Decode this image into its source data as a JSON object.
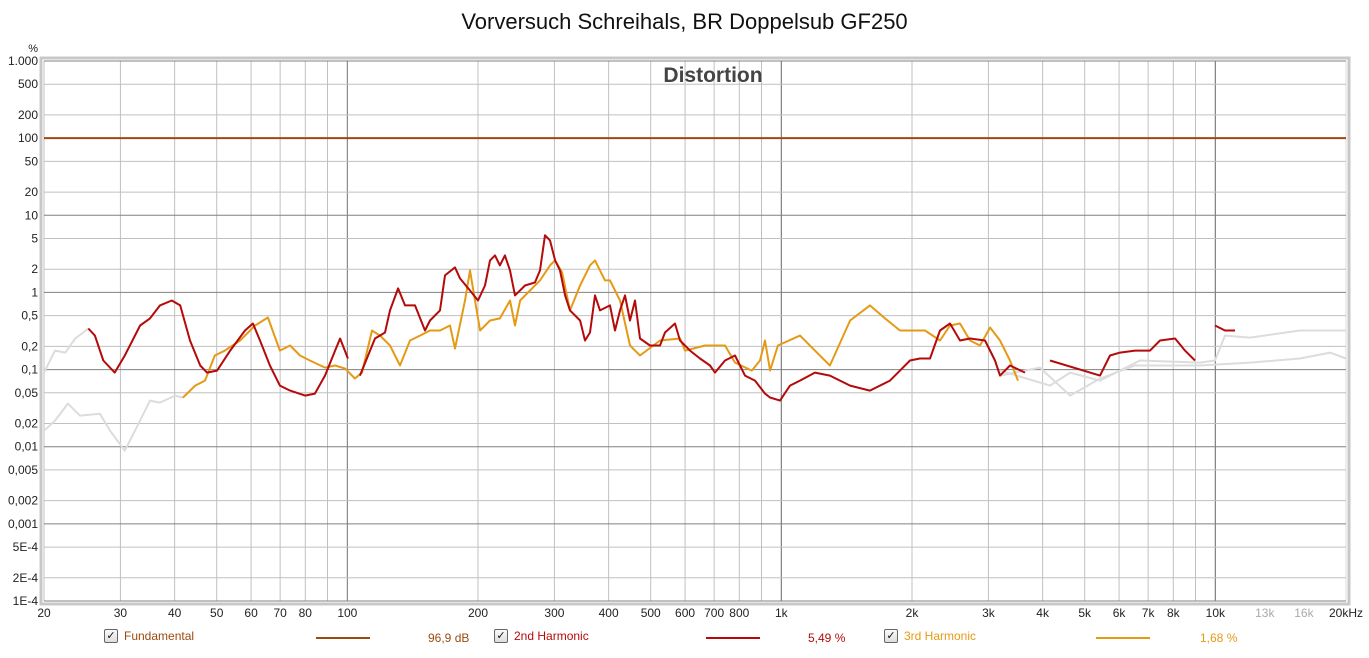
{
  "chart_data": {
    "type": "line",
    "title": "Vorversuch Schreihals, BR Doppelsub GF250",
    "subtitle": "Distortion",
    "ylabel": "%",
    "xlabel": "",
    "xscale": "log",
    "yscale": "log",
    "xlim": [
      20,
      20000
    ],
    "ylim": [
      0.0001,
      1000
    ],
    "grid": true,
    "x_ticks": [
      [
        20,
        "20"
      ],
      [
        30,
        "30"
      ],
      [
        40,
        "40"
      ],
      [
        50,
        "50"
      ],
      [
        60,
        "60"
      ],
      [
        70,
        "70"
      ],
      [
        80,
        "80"
      ],
      [
        100,
        "100"
      ],
      [
        200,
        "200"
      ],
      [
        300,
        "300"
      ],
      [
        400,
        "400"
      ],
      [
        500,
        "500"
      ],
      [
        600,
        "600"
      ],
      [
        700,
        "700"
      ],
      [
        800,
        "800"
      ],
      [
        1000,
        "1k"
      ],
      [
        2000,
        "2k"
      ],
      [
        3000,
        "3k"
      ],
      [
        4000,
        "4k"
      ],
      [
        5000,
        "5k"
      ],
      [
        6000,
        "6k"
      ],
      [
        7000,
        "7k"
      ],
      [
        8000,
        "8k"
      ],
      [
        10000,
        "10k"
      ],
      [
        13000,
        "13k"
      ],
      [
        16000,
        "16k"
      ],
      [
        20000,
        "20kHz"
      ]
    ],
    "y_ticks": [
      [
        1000,
        "1.000"
      ],
      [
        500,
        "500"
      ],
      [
        200,
        "200"
      ],
      [
        100,
        "100"
      ],
      [
        50,
        "50"
      ],
      [
        20,
        "20"
      ],
      [
        10,
        "10"
      ],
      [
        5,
        "5"
      ],
      [
        2,
        "2"
      ],
      [
        1,
        "1"
      ],
      [
        0.5,
        "0,5"
      ],
      [
        0.2,
        "0,2"
      ],
      [
        0.1,
        "0,1"
      ],
      [
        0.05,
        "0,05"
      ],
      [
        0.02,
        "0,02"
      ],
      [
        0.01,
        "0,01"
      ],
      [
        0.005,
        "0,005"
      ],
      [
        0.002,
        "0,002"
      ],
      [
        0.001,
        "0,001"
      ],
      [
        0.0005,
        "5E-4"
      ],
      [
        0.0002,
        "2E-4"
      ],
      [
        0.0001,
        "1E-4"
      ]
    ],
    "legend_placement": "bottom",
    "series": [
      {
        "name": "Fundamental",
        "value_label": "96,9 dB",
        "color": "#9c4a12",
        "points": [
          [
            20,
            100
          ],
          [
            20000,
            100
          ]
        ]
      },
      {
        "name": "2nd Harmonic",
        "value_label": "5,49 %",
        "color": "#b40a0a",
        "points": [
          [
            25.3,
            0.341
          ],
          [
            26.2,
            0.276
          ],
          [
            27.4,
            0.131
          ],
          [
            29.1,
            0.0914
          ],
          [
            30.7,
            0.152
          ],
          [
            33.3,
            0.373
          ],
          [
            35.1,
            0.46
          ],
          [
            37.0,
            0.678
          ],
          [
            39.4,
            0.787
          ],
          [
            41.2,
            0.678
          ],
          [
            43.4,
            0.238
          ],
          [
            45.8,
            0.113
          ],
          [
            47.5,
            0.0914
          ],
          [
            50.1,
            0.097
          ],
          [
            53.7,
            0.176
          ],
          [
            58.1,
            0.321
          ],
          [
            60.6,
            0.396
          ],
          [
            62.9,
            0.238
          ],
          [
            66.3,
            0.113
          ],
          [
            69.9,
            0.062
          ],
          [
            73.8,
            0.0534
          ],
          [
            79.9,
            0.046
          ],
          [
            84.2,
            0.0488
          ],
          [
            88.8,
            0.0836
          ],
          [
            93.7,
            0.176
          ],
          [
            96.2,
            0.253
          ],
          [
            100.3,
            0.139
          ],
          null,
          [
            106.9,
            0.0836
          ],
          [
            115.8,
            0.253
          ],
          [
            122.1,
            0.302
          ],
          [
            125.4,
            0.584
          ],
          [
            130.9,
            1.127
          ],
          [
            135.8,
            0.678
          ],
          [
            143.2,
            0.678
          ],
          [
            151.0,
            0.321
          ],
          [
            155.0,
            0.433
          ],
          [
            163.5,
            0.584
          ],
          [
            167.9,
            1.66
          ],
          [
            177.0,
            2.11
          ],
          [
            181.8,
            1.52
          ],
          [
            191.7,
            1.06
          ],
          [
            200.0,
            0.787
          ],
          [
            207.6,
            1.23
          ],
          [
            213.2,
            2.6
          ],
          [
            218.9,
            3.02
          ],
          [
            224.7,
            2.24
          ],
          [
            230.7,
            3.02
          ],
          [
            237.0,
            1.93
          ],
          [
            243.4,
            0.914
          ],
          [
            256.6,
            1.23
          ],
          [
            270.6,
            1.35
          ],
          [
            277.9,
            1.93
          ],
          [
            285.4,
            5.5
          ],
          [
            293.1,
            4.73
          ],
          [
            301.0,
            2.6
          ],
          [
            309.0,
            1.93
          ],
          [
            317.4,
            0.914
          ],
          [
            325.9,
            0.584
          ],
          [
            343.7,
            0.433
          ],
          [
            352.9,
            0.238
          ],
          [
            362.4,
            0.302
          ],
          [
            372.1,
            0.914
          ],
          [
            382.1,
            0.584
          ],
          [
            402.9,
            0.678
          ],
          [
            413.7,
            0.321
          ],
          [
            424.8,
            0.584
          ],
          [
            436.3,
            0.914
          ],
          [
            448.0,
            0.433
          ],
          [
            460.0,
            0.787
          ],
          [
            472.4,
            0.253
          ],
          [
            498.0,
            0.205
          ],
          [
            525.3,
            0.205
          ],
          [
            539.3,
            0.302
          ],
          [
            568.8,
            0.396
          ],
          [
            584.0,
            0.238
          ],
          [
            615.9,
            0.176
          ],
          [
            649.4,
            0.139
          ],
          [
            684.8,
            0.113
          ],
          [
            703.2,
            0.0914
          ],
          [
            741.6,
            0.131
          ],
          [
            782.0,
            0.152
          ],
          [
            824.7,
            0.0836
          ],
          [
            869.6,
            0.072
          ],
          [
            917.1,
            0.0488
          ],
          [
            941.7,
            0.0434
          ],
          [
            993,
            0.0396
          ],
          [
            1047,
            0.062
          ],
          [
            1104,
            0.072
          ],
          [
            1195,
            0.0914
          ],
          [
            1294,
            0.0836
          ],
          [
            1440,
            0.062
          ],
          [
            1600,
            0.0534
          ],
          [
            1780,
            0.072
          ],
          [
            1877,
            0.097
          ],
          [
            1979,
            0.131
          ],
          [
            2086,
            0.139
          ],
          [
            2200,
            0.139
          ],
          [
            2320,
            0.321
          ],
          [
            2447,
            0.396
          ],
          [
            2580,
            0.238
          ],
          [
            2720,
            0.253
          ],
          [
            2946,
            0.238
          ],
          [
            3107,
            0.131
          ],
          [
            3190,
            0.0836
          ],
          [
            3364,
            0.113
          ],
          [
            3643,
            0.0914
          ],
          null,
          [
            4159,
            0.131
          ],
          [
            5423,
            0.0836
          ],
          [
            5717,
            0.152
          ],
          [
            6029,
            0.166
          ],
          [
            6530,
            0.176
          ],
          [
            7071,
            0.176
          ],
          [
            7456,
            0.238
          ],
          [
            8075,
            0.253
          ],
          [
            8511,
            0.176
          ],
          [
            8977,
            0.131
          ],
          null,
          [
            9982,
            0.373
          ],
          [
            10525,
            0.321
          ],
          [
            11099,
            0.321
          ]
        ]
      },
      {
        "name": "3rd Harmonic",
        "value_label": "1,68 %",
        "color": "#e59a16",
        "points": [
          [
            41.8,
            0.0433
          ],
          [
            44.6,
            0.062
          ],
          [
            47.0,
            0.072
          ],
          [
            49.5,
            0.152
          ],
          [
            52.2,
            0.176
          ],
          [
            56.6,
            0.238
          ],
          [
            61.3,
            0.373
          ],
          [
            65.6,
            0.473
          ],
          [
            69.9,
            0.176
          ],
          [
            73.8,
            0.205
          ],
          [
            77.8,
            0.152
          ],
          [
            82.0,
            0.131
          ],
          [
            88.8,
            0.106
          ],
          [
            93.7,
            0.113
          ],
          [
            98.8,
            0.103
          ],
          [
            104.1,
            0.0766
          ],
          [
            108.1,
            0.0914
          ],
          [
            114.0,
            0.321
          ],
          [
            118.9,
            0.276
          ],
          [
            125.4,
            0.205
          ],
          [
            132.2,
            0.113
          ],
          [
            139.4,
            0.238
          ],
          [
            147,
            0.276
          ],
          [
            155.0,
            0.321
          ],
          [
            163.5,
            0.321
          ],
          [
            172.4,
            0.373
          ],
          [
            177.0,
            0.187
          ],
          [
            186.7,
            0.787
          ],
          [
            191.7,
            1.93
          ],
          [
            196.8,
            0.787
          ],
          [
            202.2,
            0.321
          ],
          [
            213.2,
            0.433
          ],
          [
            224.7,
            0.46
          ],
          [
            237.0,
            0.787
          ],
          [
            243.4,
            0.373
          ],
          [
            250,
            0.787
          ],
          [
            263.5,
            1.06
          ],
          [
            277.9,
            1.43
          ],
          [
            293.1,
            2.24
          ],
          [
            301.0,
            2.6
          ],
          [
            312.5,
            1.82
          ],
          [
            325.9,
            0.584
          ],
          [
            343.7,
            1.23
          ],
          [
            362.4,
            2.24
          ],
          [
            372.1,
            2.6
          ],
          [
            392.3,
            1.43
          ],
          [
            402.9,
            1.43
          ],
          [
            424.8,
            0.787
          ],
          [
            448.0,
            0.205
          ],
          [
            472.4,
            0.152
          ],
          [
            525.3,
            0.238
          ],
          [
            584,
            0.253
          ],
          [
            600,
            0.176
          ],
          [
            667,
            0.205
          ],
          [
            741.6,
            0.205
          ],
          [
            782,
            0.123
          ],
          [
            855,
            0.097
          ],
          [
            893,
            0.131
          ],
          [
            917,
            0.238
          ],
          [
            942,
            0.097
          ],
          [
            982,
            0.205
          ],
          [
            1104,
            0.276
          ],
          [
            1195,
            0.176
          ],
          [
            1294,
            0.113
          ],
          [
            1440,
            0.433
          ],
          [
            1600,
            0.678
          ],
          [
            1733,
            0.46
          ],
          [
            1877,
            0.321
          ],
          [
            2143,
            0.321
          ],
          [
            2320,
            0.238
          ],
          [
            2447,
            0.373
          ],
          [
            2580,
            0.396
          ],
          [
            2720,
            0.238
          ],
          [
            2869,
            0.205
          ],
          [
            3026,
            0.351
          ],
          [
            3190,
            0.238
          ],
          [
            3364,
            0.131
          ],
          [
            3509,
            0.072
          ]
        ]
      },
      {
        "name": "",
        "color": "#dcdcdc",
        "points": [
          [
            20,
            0.0914
          ],
          [
            21.2,
            0.176
          ],
          [
            22.4,
            0.166
          ],
          [
            23.6,
            0.253
          ],
          [
            25.3,
            0.341
          ],
          null,
          [
            3190,
            0.097
          ],
          [
            4159,
            0.062
          ],
          [
            4626,
            0.0914
          ],
          [
            5423,
            0.072
          ],
          [
            6705,
            0.131
          ],
          [
            9218,
            0.123
          ],
          [
            9982,
            0.131
          ],
          [
            10525,
            0.276
          ],
          [
            12020,
            0.26
          ],
          [
            15670,
            0.321
          ],
          [
            20000,
            0.321
          ]
        ]
      },
      {
        "name": "",
        "color": "#dcdcdc",
        "points": [
          [
            20,
            0.0161
          ],
          [
            21.2,
            0.0218
          ],
          [
            22.7,
            0.0362
          ],
          [
            24.2,
            0.0253
          ],
          [
            26.9,
            0.0268
          ],
          [
            28.4,
            0.0161
          ],
          [
            30.7,
            0.0089
          ],
          [
            32.4,
            0.0161
          ],
          [
            35.1,
            0.0396
          ],
          [
            37.0,
            0.0373
          ],
          [
            40.1,
            0.046
          ],
          [
            41.8,
            0.0433
          ],
          null,
          [
            3190,
            0.0836
          ],
          [
            3945,
            0.106
          ],
          [
            4626,
            0.046
          ],
          [
            5423,
            0.0766
          ],
          [
            6530,
            0.113
          ],
          [
            9218,
            0.113
          ],
          [
            12020,
            0.123
          ],
          [
            15670,
            0.139
          ],
          [
            18370,
            0.166
          ],
          [
            20000,
            0.139
          ]
        ]
      }
    ]
  }
}
